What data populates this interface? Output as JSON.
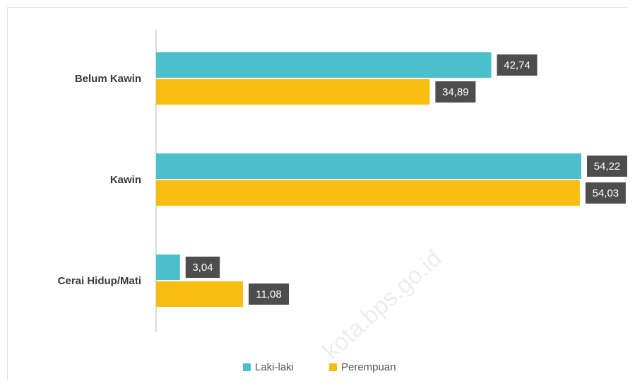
{
  "chart_data": {
    "type": "bar",
    "orientation": "horizontal",
    "categories": [
      "Belum Kawin",
      "Kawin",
      "Cerai Hidup/Mati"
    ],
    "series": [
      {
        "name": "Laki-laki",
        "values": [
          42.74,
          54.22,
          3.04
        ],
        "labels": [
          "42,74",
          "54,22",
          "3,04"
        ],
        "color": "#4bbfcc"
      },
      {
        "name": "Perempuan",
        "values": [
          34.89,
          54.03,
          11.08
        ],
        "labels": [
          "34,89",
          "54,03",
          "11,08"
        ],
        "color": "#f7bd11"
      }
    ],
    "xlim": [
      0,
      60
    ],
    "grid": false,
    "legend": "bottom-center",
    "data_label_bg": "#4d4d4d"
  },
  "watermark": "kota.bps.go.id"
}
